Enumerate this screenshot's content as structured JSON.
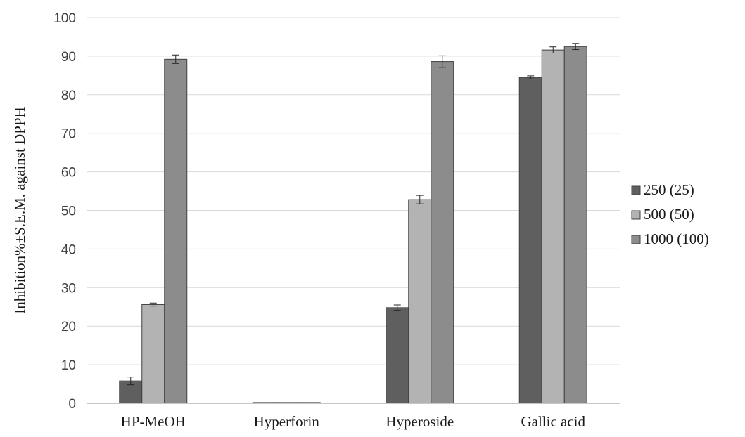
{
  "chart_data": {
    "type": "bar",
    "title": "",
    "xlabel": "",
    "ylabel": "Inhibition%±S.E.M. against DPPH",
    "ylim": [
      0,
      100
    ],
    "yticks": [
      0,
      10,
      20,
      30,
      40,
      50,
      60,
      70,
      80,
      90,
      100
    ],
    "grid": true,
    "legend_position": "right",
    "categories": [
      "HP-MeOH",
      "Hyperforin",
      "Hyperoside",
      "Gallic acid"
    ],
    "series": [
      {
        "name": "250 (25)",
        "color": "#5f5f5f",
        "values": [
          5.8,
          0.2,
          24.8,
          84.5
        ],
        "errors": [
          1.0,
          0,
          0.7,
          0.4
        ]
      },
      {
        "name": "500 (50)",
        "color": "#b3b3b3",
        "values": [
          25.6,
          0.2,
          52.8,
          91.6
        ],
        "errors": [
          0.4,
          0,
          1.1,
          0.8
        ]
      },
      {
        "name": "1000 (100)",
        "color": "#8c8c8c",
        "values": [
          89.2,
          0.2,
          88.6,
          92.5
        ],
        "errors": [
          1.1,
          0,
          1.5,
          0.8
        ]
      }
    ]
  }
}
